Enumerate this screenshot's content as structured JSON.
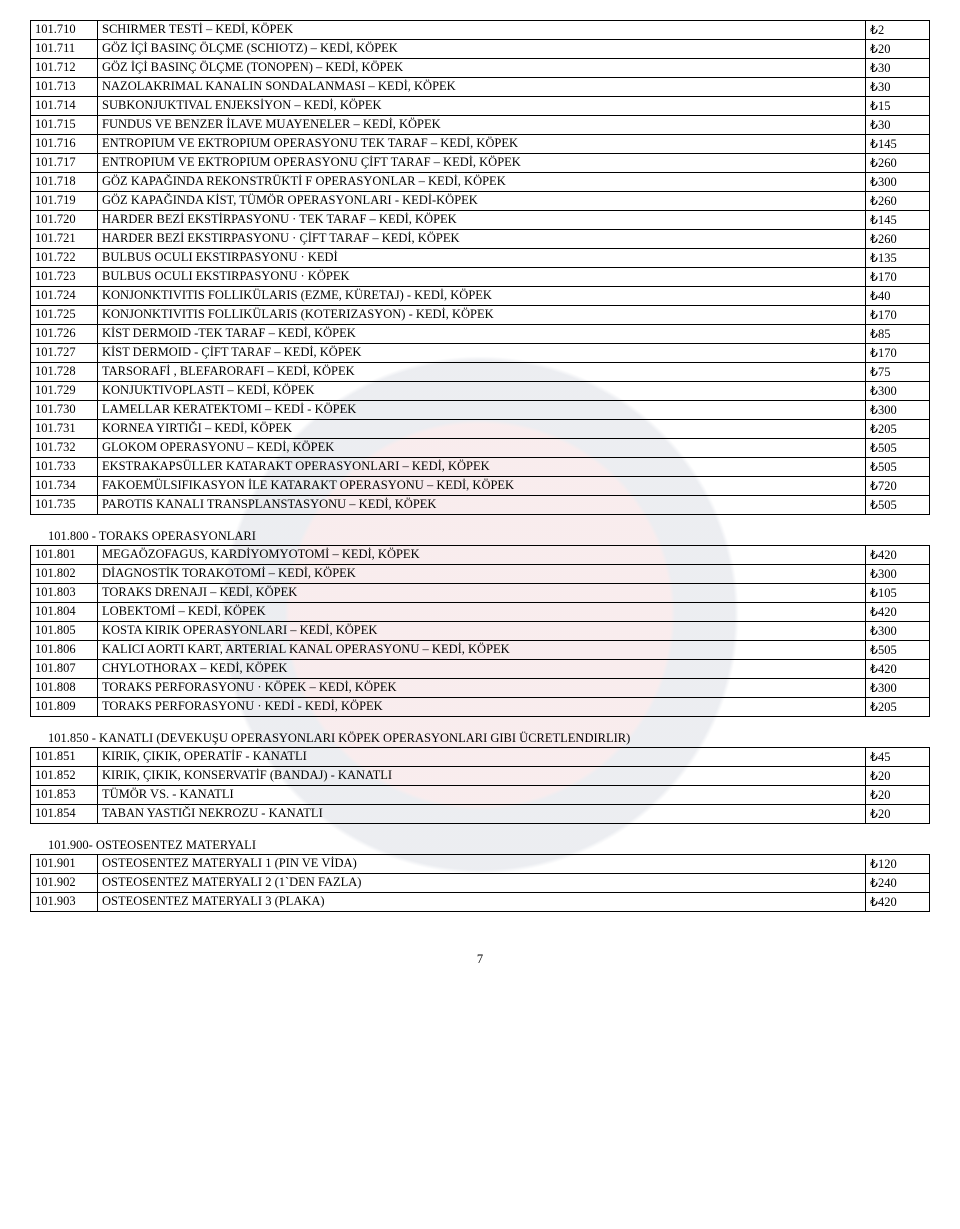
{
  "currency": "₺",
  "tables": [
    {
      "rows": [
        {
          "code": "101.710",
          "desc": "SCHIRMER TESTİ – KEDİ, KÖPEK",
          "price": "2"
        },
        {
          "code": "101.711",
          "desc": "GÖZ İÇİ BASINÇ ÖLÇME (SCHIOTZ) – KEDİ, KÖPEK",
          "price": "20"
        },
        {
          "code": "101.712",
          "desc": "GÖZ İÇİ BASINÇ ÖLÇME (TONOPEN) – KEDİ, KÖPEK",
          "price": "30"
        },
        {
          "code": "101.713",
          "desc": "NAZOLAKRIMAL KANALIN SONDALANMASI – KEDİ, KÖPEK",
          "price": "30"
        },
        {
          "code": "101.714",
          "desc": "SUBKONJUKTIVAL ENJEKSİYON – KEDİ, KÖPEK",
          "price": "15"
        },
        {
          "code": "101.715",
          "desc": "FUNDUS VE BENZER İLAVE MUAYENELER – KEDİ, KÖPEK",
          "price": "30"
        },
        {
          "code": "101.716",
          "desc": "ENTROPIUM VE EKTROPIUM OPERASYONU TEK TARAF – KEDİ, KÖPEK",
          "price": "145"
        },
        {
          "code": "101.717",
          "desc": "ENTROPIUM VE EKTROPIUM OPERASYONU ÇİFT TARAF – KEDİ, KÖPEK",
          "price": "260"
        },
        {
          "code": "101.718",
          "desc": "GÖZ KAPAĞINDA REKONSTRÜKTİ F OPERASYONLAR – KEDİ, KÖPEK",
          "price": "300"
        },
        {
          "code": "101.719",
          "desc": "GÖZ KAPAĞINDA KİST, TÜMÖR OPERASYONLARI - KEDİ-KÖPEK",
          "price": "260"
        },
        {
          "code": "101.720",
          "desc": "HARDER BEZİ EKSTİRPASYONU  · TEK TARAF – KEDİ, KÖPEK",
          "price": "145"
        },
        {
          "code": "101.721",
          "desc": "HARDER BEZİ EKSTIRPASYONU · ÇİFT TARAF – KEDİ, KÖPEK",
          "price": "260"
        },
        {
          "code": "101.722",
          "desc": "BULBUS OCULI EKSTIRPASYONU · KEDİ",
          "price": "135"
        },
        {
          "code": "101.723",
          "desc": "BULBUS OCULI EKSTIRPASYONU · KÖPEK",
          "price": "170"
        },
        {
          "code": "101.724",
          "desc": "KONJONKTIVITIS FOLLIKÜLARIS (EZME, KÜRETAJ)  - KEDİ, KÖPEK",
          "price": "40"
        },
        {
          "code": "101.725",
          "desc": "KONJONKTIVITIS FOLLIKÜLARIS (KOTERIZASYON)  - KEDİ, KÖPEK",
          "price": "170"
        },
        {
          "code": "101.726",
          "desc": "KİST DERMOID -TEK TARAF – KEDİ, KÖPEK",
          "price": "85"
        },
        {
          "code": "101.727",
          "desc": "KİST DERMOID - ÇİFT TARAF – KEDİ, KÖPEK",
          "price": "170"
        },
        {
          "code": "101.728",
          "desc": "TARSORAFİ , BLEFARORAFI – KEDİ, KÖPEK",
          "price": "75"
        },
        {
          "code": "101.729",
          "desc": "KONJUKTIVOPLASTI – KEDİ, KÖPEK",
          "price": "300"
        },
        {
          "code": "101.730",
          "desc": "LAMELLAR KERATEKTOMI – KEDİ - KÖPEK",
          "price": "300"
        },
        {
          "code": "101.731",
          "desc": "KORNEA YIRTIĞI – KEDİ, KÖPEK",
          "price": "205"
        },
        {
          "code": "101.732",
          "desc": "GLOKOM OPERASYONU – KEDİ, KÖPEK",
          "price": "505"
        },
        {
          "code": "101.733",
          "desc": "EKSTRAKAPSÜLLER KATARAKT OPERASYONLARI – KEDİ, KÖPEK",
          "price": "505"
        },
        {
          "code": "101.734",
          "desc": "FAKOEMÜLSIFIKASYON İLE KATARAKT OPERASYONU – KEDİ, KÖPEK",
          "price": "720"
        },
        {
          "code": "101.735",
          "desc": "PAROTIS KANALI TRANSPLANSTASYONU – KEDİ, KÖPEK",
          "price": "505"
        }
      ]
    },
    {
      "title": "101.800 - TORAKS OPERASYONLARI",
      "rows": [
        {
          "code": "101.801",
          "desc": "MEGAÖZOFAGUS, KARDİYOMYOTOMİ – KEDİ, KÖPEK",
          "price": "420"
        },
        {
          "code": "101.802",
          "desc": "DİAGNOSTİK TORAKOTOMİ – KEDİ, KÖPEK",
          "price": "300"
        },
        {
          "code": "101.803",
          "desc": "TORAKS DRENAJI – KEDİ, KÖPEK",
          "price": "105"
        },
        {
          "code": "101.804",
          "desc": "LOBEKTOMİ – KEDİ, KÖPEK",
          "price": "420"
        },
        {
          "code": "101.805",
          "desc": "KOSTA KIRIK OPERASYONLARI – KEDİ, KÖPEK",
          "price": "300"
        },
        {
          "code": "101.806",
          "desc": "KALICI AORTI KART, ARTERIAL KANAL OPERASYONU – KEDİ, KÖPEK",
          "price": "505"
        },
        {
          "code": "101.807",
          "desc": "CHYLOTHORAX – KEDİ, KÖPEK",
          "price": "420"
        },
        {
          "code": "101.808",
          "desc": "TORAKS PERFORASYONU · KÖPEK – KEDİ, KÖPEK",
          "price": "300"
        },
        {
          "code": "101.809",
          "desc": "TORAKS PERFORASYONU · KEDİ  - KEDİ, KÖPEK",
          "price": "205"
        }
      ]
    },
    {
      "title": "101.850 - KANATLI (DEVEKUŞU OPERASYONLARI KÖPEK OPERASYONLARI GIBI ÜCRETLENDIRLIR)",
      "rows": [
        {
          "code": "101.851",
          "desc": "KIRIK, ÇIKIK, OPERATİF - KANATLI",
          "price": "45"
        },
        {
          "code": "101.852",
          "desc": "KIRIK, ÇIKIK, KONSERVATİF (BANDAJ) - KANATLI",
          "price": "20"
        },
        {
          "code": "101.853",
          "desc": "TÜMÖR VS. - KANATLI",
          "price": "20"
        },
        {
          "code": "101.854",
          "desc": "TABAN YASTIĞI NEKROZU - KANATLI",
          "price": "20"
        }
      ]
    },
    {
      "title": "101.900- OSTEOSENTEZ MATERYALI",
      "rows": [
        {
          "code": "101.901",
          "desc": "OSTEOSENTEZ MATERYALI 1 (PIN VE VİDA)",
          "price": "120"
        },
        {
          "code": "101.902",
          "desc": "OSTEOSENTEZ MATERYALI 2 (1`DEN FAZLA)",
          "price": "240"
        },
        {
          "code": "101.903",
          "desc": "OSTEOSENTEZ MATERYALI 3 (PLAKA)",
          "price": "420"
        }
      ]
    }
  ],
  "pageNumber": "7"
}
